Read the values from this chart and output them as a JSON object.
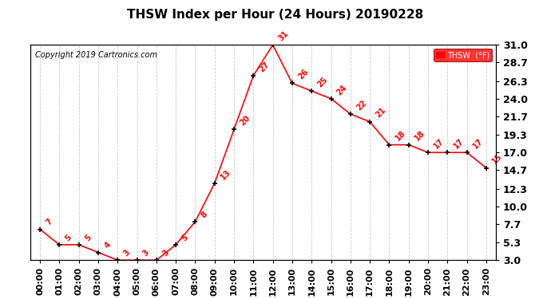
{
  "title": "THSW Index per Hour (24 Hours) 20190228",
  "copyright": "Copyright 2019 Cartronics.com",
  "legend_label": "THSW  (°F)",
  "hours": [
    "00:00",
    "01:00",
    "02:00",
    "03:00",
    "04:00",
    "05:00",
    "06:00",
    "07:00",
    "08:00",
    "09:00",
    "10:00",
    "11:00",
    "12:00",
    "13:00",
    "14:00",
    "15:00",
    "16:00",
    "17:00",
    "18:00",
    "19:00",
    "20:00",
    "21:00",
    "22:00",
    "23:00"
  ],
  "values": [
    7,
    5,
    5,
    4,
    3,
    3,
    3,
    5,
    8,
    13,
    20,
    27,
    31,
    26,
    25,
    24,
    22,
    21,
    18,
    18,
    17,
    17,
    17,
    15
  ],
  "ylim": [
    3.0,
    31.0
  ],
  "yticks": [
    3.0,
    5.3,
    7.7,
    10.0,
    12.3,
    14.7,
    17.0,
    19.3,
    21.7,
    24.0,
    26.3,
    28.7,
    31.0
  ],
  "line_color": "red",
  "marker_color": "black",
  "label_color": "red",
  "bg_color": "white",
  "grid_color": "#c8c8c8",
  "title_fontsize": 11,
  "copyright_fontsize": 7,
  "label_fontsize": 7,
  "tick_fontsize": 8,
  "ytick_fontsize": 9
}
